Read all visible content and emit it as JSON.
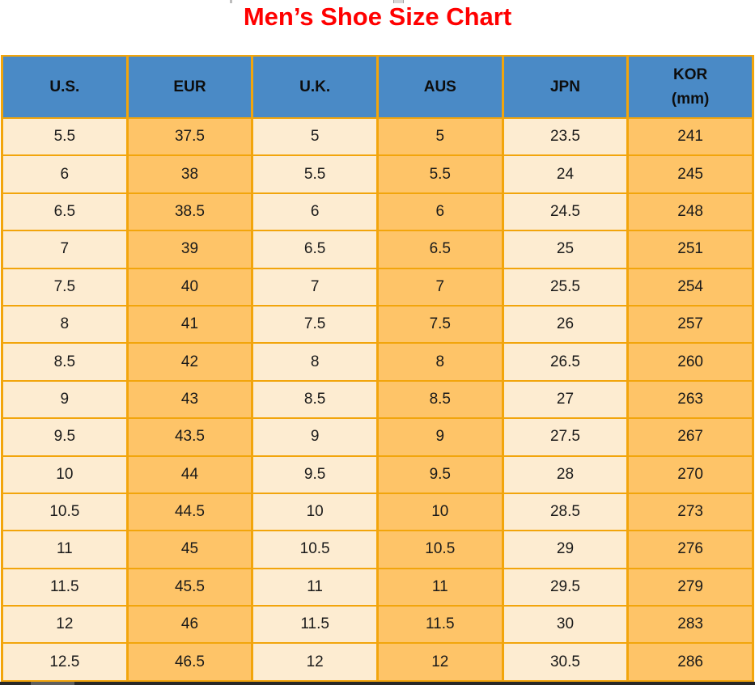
{
  "colors": {
    "title": "#ff0000",
    "header_bg": "#4a8ac6",
    "header_text": "#0d0d0d",
    "border": "#f2a50c",
    "cell_light": "#fdecd1",
    "cell_dark": "#fec468",
    "cell_text": "#1a1a1a",
    "bottom_bar": "#282828",
    "bottom_bar_segment": "#5e5e5e"
  },
  "chart_data": {
    "type": "table",
    "title": "Men’s Shoe Size Chart",
    "columns": [
      "U.S.",
      "EUR",
      "U.K.",
      "AUS",
      "JPN",
      "KOR (mm)"
    ],
    "column_keys": [
      "us",
      "eur",
      "uk",
      "aus",
      "jpn",
      "kor"
    ],
    "header_display": [
      "U.S.",
      "EUR",
      "U.K.",
      "AUS",
      "JPN",
      "KOR\n(mm)"
    ],
    "column_striping": [
      "light",
      "dark",
      "light",
      "dark",
      "light",
      "dark"
    ],
    "rows": [
      [
        "5.5",
        "37.5",
        "5",
        "5",
        "23.5",
        "241"
      ],
      [
        "6",
        "38",
        "5.5",
        "5.5",
        "24",
        "245"
      ],
      [
        "6.5",
        "38.5",
        "6",
        "6",
        "24.5",
        "248"
      ],
      [
        "7",
        "39",
        "6.5",
        "6.5",
        "25",
        "251"
      ],
      [
        "7.5",
        "40",
        "7",
        "7",
        "25.5",
        "254"
      ],
      [
        "8",
        "41",
        "7.5",
        "7.5",
        "26",
        "257"
      ],
      [
        "8.5",
        "42",
        "8",
        "8",
        "26.5",
        "260"
      ],
      [
        "9",
        "43",
        "8.5",
        "8.5",
        "27",
        "263"
      ],
      [
        "9.5",
        "43.5",
        "9",
        "9",
        "27.5",
        "267"
      ],
      [
        "10",
        "44",
        "9.5",
        "9.5",
        "28",
        "270"
      ],
      [
        "10.5",
        "44.5",
        "10",
        "10",
        "28.5",
        "273"
      ],
      [
        "11",
        "45",
        "10.5",
        "10.5",
        "29",
        "276"
      ],
      [
        "11.5",
        "45.5",
        "11",
        "11",
        "29.5",
        "279"
      ],
      [
        "12",
        "46",
        "11.5",
        "11.5",
        "30",
        "283"
      ],
      [
        "12.5",
        "46.5",
        "12",
        "12",
        "30.5",
        "286"
      ]
    ]
  }
}
